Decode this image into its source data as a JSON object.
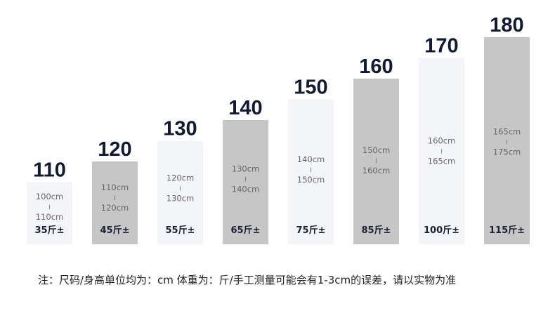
{
  "chart_data": {
    "type": "bar",
    "title": "",
    "xlabel": "",
    "ylabel": "",
    "categories": [
      "110",
      "120",
      "130",
      "140",
      "150",
      "160",
      "170",
      "180"
    ],
    "values": [
      110,
      120,
      130,
      140,
      150,
      160,
      170,
      180
    ],
    "ranges": [
      {
        "from": "100cm",
        "sep": "≀",
        "to": "110cm"
      },
      {
        "from": "110cm",
        "sep": "≀",
        "to": "120cm"
      },
      {
        "from": "120cm",
        "sep": "≀",
        "to": "130cm"
      },
      {
        "from": "130cm",
        "sep": "≀",
        "to": "140cm"
      },
      {
        "from": "140cm",
        "sep": "≀",
        "to": "150cm"
      },
      {
        "from": "150cm",
        "sep": "≀",
        "to": "160cm"
      },
      {
        "from": "160cm",
        "sep": "≀",
        "to": "165cm"
      },
      {
        "from": "165cm",
        "sep": "≀",
        "to": "175cm"
      }
    ],
    "weights": [
      "35斤±",
      "45斤±",
      "55斤±",
      "65斤±",
      "75斤±",
      "85斤±",
      "100斤±",
      "115斤±"
    ],
    "ylim": [
      80,
      180
    ],
    "grid": false,
    "colors": {
      "light": "#f4f5f9",
      "dark": "#c6c6c6"
    }
  },
  "note": "注：尺码/身高单位均为：cm 体重为：斤/手工测量可能会有1-3cm的误差，请以实物为准"
}
